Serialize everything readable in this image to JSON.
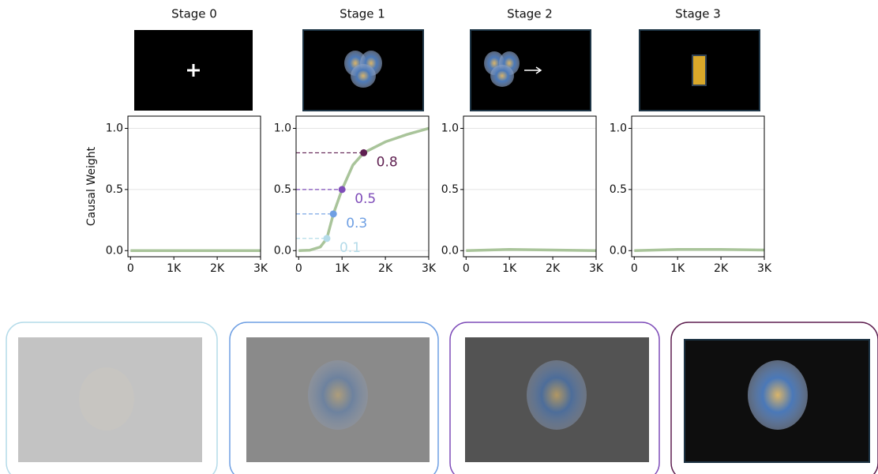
{
  "chart_data": [
    {
      "type": "line",
      "title": "Stage 0",
      "y_label": "Causal Weight",
      "x": [
        0,
        1000,
        2000,
        3000
      ],
      "series": [
        {
          "color": "#a9c49a",
          "values": [
            0,
            0,
            0,
            0
          ]
        }
      ],
      "xlim": [
        -60,
        3000
      ],
      "ylim": [
        -0.05,
        1.1
      ],
      "xticks": [
        0,
        {
          "value": 1000,
          "label": "1K"
        },
        {
          "value": 2000,
          "label": "2K"
        },
        {
          "value": 3000,
          "label": "3K"
        }
      ],
      "yticks": [
        {
          "value": 0,
          "label": "0.0"
        },
        0.5,
        {
          "value": 1,
          "label": "1.0"
        }
      ],
      "grid": true
    },
    {
      "type": "line",
      "title": "Stage 1",
      "x": [
        0,
        250,
        500,
        650,
        800,
        1000,
        1250,
        1500,
        2000,
        2500,
        3000
      ],
      "series": [
        {
          "color": "#a9c49a",
          "values": [
            0,
            0.003,
            0.03,
            0.1,
            0.3,
            0.5,
            0.7,
            0.8,
            0.89,
            0.95,
            1.0
          ]
        }
      ],
      "points": [
        {
          "x": 650,
          "y": 0.1,
          "color": "#b4dbe9"
        },
        {
          "x": 800,
          "y": 0.3,
          "color": "#6e9fe3"
        },
        {
          "x": 1000,
          "y": 0.5,
          "color": "#7f4db9"
        },
        {
          "x": 1500,
          "y": 0.8,
          "color": "#5e1f50"
        }
      ],
      "xlim": [
        -60,
        3000
      ],
      "ylim": [
        -0.05,
        1.1
      ],
      "xticks": [
        0,
        {
          "value": 1000,
          "label": "1K"
        },
        {
          "value": 2000,
          "label": "2K"
        },
        {
          "value": 3000,
          "label": "3K"
        }
      ],
      "yticks": [
        {
          "value": 0,
          "label": "0.0"
        },
        0.5,
        {
          "value": 1,
          "label": "1.0"
        }
      ],
      "grid": true
    },
    {
      "type": "line",
      "title": "Stage 2",
      "x": [
        0,
        1000,
        2000,
        3000
      ],
      "series": [
        {
          "color": "#a9c49a",
          "values": [
            0,
            0.01,
            0.005,
            0
          ]
        }
      ],
      "xlim": [
        -60,
        3000
      ],
      "ylim": [
        -0.05,
        1.1
      ],
      "xticks": [
        0,
        {
          "value": 1000,
          "label": "1K"
        },
        {
          "value": 2000,
          "label": "2K"
        },
        {
          "value": 3000,
          "label": "3K"
        }
      ],
      "yticks": [
        {
          "value": 0,
          "label": "0.0"
        },
        0.5,
        {
          "value": 1,
          "label": "1.0"
        }
      ],
      "grid": true
    },
    {
      "type": "line",
      "title": "Stage 3",
      "x": [
        0,
        1000,
        2000,
        3000
      ],
      "series": [
        {
          "color": "#a9c49a",
          "values": [
            0,
            0.01,
            0.01,
            0.005
          ]
        }
      ],
      "xlim": [
        -60,
        3000
      ],
      "ylim": [
        -0.05,
        1.1
      ],
      "xticks": [
        0,
        {
          "value": 1000,
          "label": "1K"
        },
        {
          "value": 2000,
          "label": "2K"
        },
        {
          "value": 3000,
          "label": "3K"
        }
      ],
      "yticks": [
        {
          "value": 0,
          "label": "0.0"
        },
        0.5,
        {
          "value": 1,
          "label": "1.0"
        }
      ],
      "grid": true
    }
  ]
}
